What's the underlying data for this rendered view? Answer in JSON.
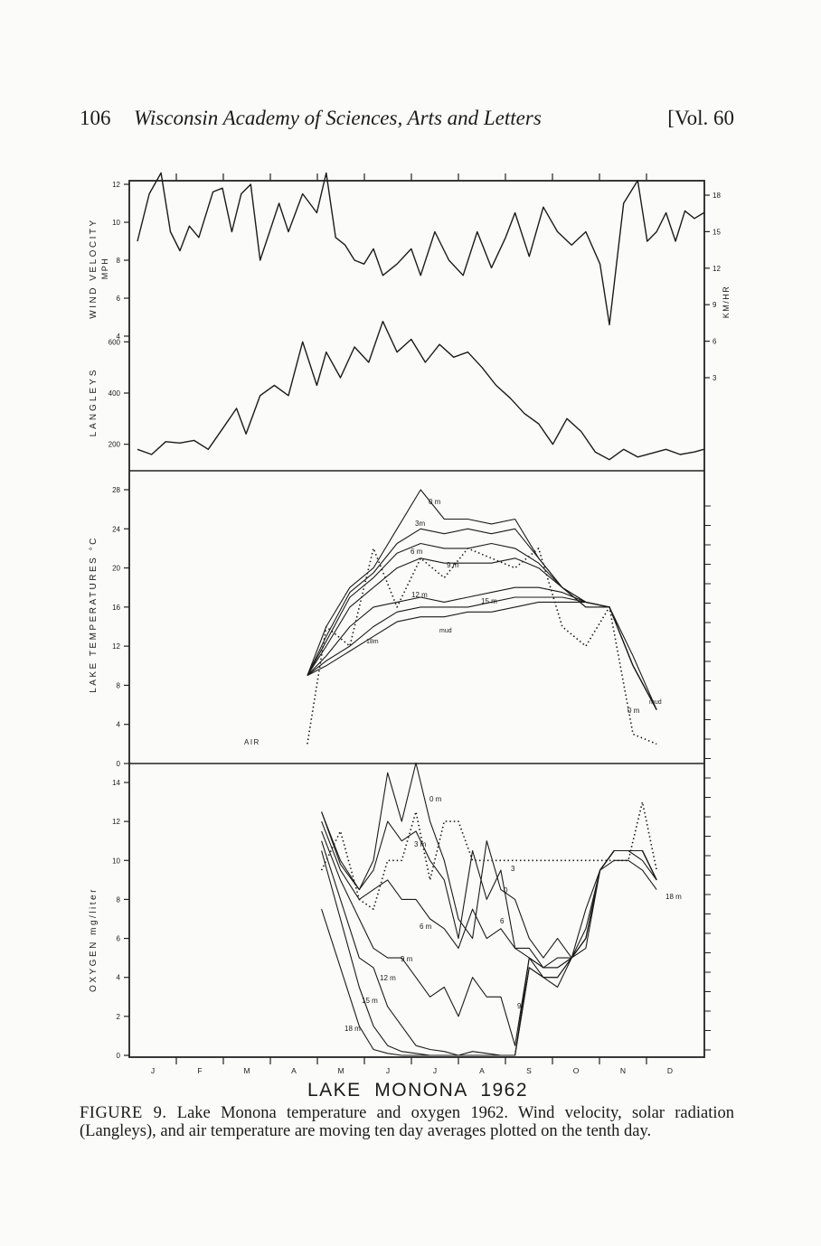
{
  "running_head": {
    "page_number": "106",
    "journal": "Wisconsin Academy of Sciences, Arts and Letters",
    "volume": "[Vol. 60"
  },
  "figure": {
    "title": "LAKE  MONONA  1962",
    "months": [
      "J",
      "F",
      "M",
      "A",
      "M",
      "J",
      "J",
      "A",
      "S",
      "O",
      "N",
      "D"
    ],
    "panels": {
      "wind": {
        "ylabel": "WIND VELOCITY",
        "yunit": "MPH",
        "yticks": [
          "4",
          "6",
          "8",
          "10",
          "12"
        ],
        "ylabel_right": "KM/HR",
        "yticks_right": [
          "3",
          "6",
          "9",
          "12",
          "15",
          "18"
        ]
      },
      "radiation": {
        "ylabel": "LANGLEYS",
        "yticks": [
          "200",
          "400",
          "600"
        ]
      },
      "temperature": {
        "ylabel": "LAKE  TEMPERATURES  °C",
        "yticks": [
          "0",
          "4",
          "8",
          "12",
          "16",
          "20",
          "24",
          "28"
        ],
        "labels": [
          "0 m",
          "3m",
          "6 m",
          "9 m",
          "12 m",
          "15 m",
          "mud",
          "18m",
          "AIR",
          "mud",
          "0 m"
        ]
      },
      "oxygen": {
        "ylabel": "OXYGEN   mg/liter",
        "yticks": [
          "0",
          "2",
          "4",
          "6",
          "8",
          "10",
          "12",
          "14"
        ],
        "labels": [
          "0 m",
          "3 m",
          "6 m",
          "9 m",
          "12 m",
          "15 m",
          "18 m",
          "3",
          "0",
          "6",
          "9",
          "18 m"
        ]
      }
    }
  },
  "chart_data": [
    {
      "type": "line",
      "title": "",
      "ylabel": "WIND VELOCITY MPH",
      "ylim": [
        4,
        12
      ],
      "x": [
        0,
        0.25,
        0.5,
        0.7,
        0.9,
        1.1,
        1.3,
        1.6,
        1.8,
        2.0,
        2.2,
        2.4,
        2.6,
        2.8,
        3.0,
        3.2,
        3.5,
        3.8,
        4.0,
        4.2,
        4.4,
        4.6,
        4.8,
        5.0,
        5.2,
        5.5,
        5.8,
        6.0,
        6.3,
        6.6,
        6.9,
        7.2,
        7.5,
        7.8,
        8.0,
        8.3,
        8.6,
        8.9,
        9.2,
        9.5,
        9.8,
        10.0,
        10.3,
        10.6,
        10.8,
        11.0,
        11.2,
        11.4,
        11.6,
        11.8,
        12.0
      ],
      "series": [
        {
          "values": [
            9.0,
            11.5,
            12.6,
            9.5,
            8.5,
            9.8,
            9.2,
            11.6,
            11.8,
            9.5,
            11.5,
            12.0,
            8.0,
            9.5,
            11.0,
            9.5,
            11.5,
            10.5,
            12.6,
            9.2,
            8.8,
            8.0,
            7.8,
            8.6,
            7.2,
            7.8,
            8.6,
            7.2,
            9.5,
            8.0,
            7.2,
            9.5,
            7.6,
            9.2,
            10.5,
            8.2,
            10.8,
            9.5,
            8.8,
            9.5,
            7.8,
            4.6,
            11.0,
            12.2,
            9.0,
            9.5,
            10.5,
            9.0,
            10.6,
            10.2,
            10.5
          ]
        }
      ]
    },
    {
      "type": "line",
      "title": "",
      "ylabel": "LANGLEYS",
      "ylim": [
        100,
        700
      ],
      "x": [
        0,
        0.3,
        0.6,
        0.9,
        1.2,
        1.5,
        1.8,
        2.1,
        2.3,
        2.6,
        2.9,
        3.2,
        3.5,
        3.8,
        4.0,
        4.3,
        4.6,
        4.9,
        5.2,
        5.5,
        5.8,
        6.1,
        6.4,
        6.7,
        7.0,
        7.3,
        7.6,
        7.9,
        8.2,
        8.5,
        8.8,
        9.1,
        9.4,
        9.7,
        10.0,
        10.3,
        10.6,
        10.9,
        11.2,
        11.5,
        11.8,
        12.0
      ],
      "series": [
        {
          "values": [
            180,
            160,
            210,
            205,
            215,
            180,
            260,
            340,
            240,
            390,
            430,
            390,
            600,
            430,
            560,
            460,
            580,
            520,
            680,
            560,
            610,
            520,
            590,
            540,
            560,
            500,
            430,
            380,
            320,
            280,
            200,
            300,
            250,
            170,
            140,
            180,
            150,
            165,
            180,
            160,
            170,
            180
          ]
        }
      ]
    },
    {
      "type": "line",
      "title": "",
      "ylabel": "LAKE TEMPERATURES °C",
      "ylim": [
        0,
        28
      ],
      "x": [
        3.6,
        4.0,
        4.5,
        5.0,
        5.5,
        6.0,
        6.5,
        7.0,
        7.5,
        8.0,
        8.5,
        9.0,
        9.5,
        10.0,
        10.5,
        11.0
      ],
      "series": [
        {
          "name": "0 m",
          "values": [
            9,
            14,
            18,
            20,
            24,
            28,
            25,
            25,
            24.5,
            25,
            21,
            18,
            16,
            16,
            11,
            5.5
          ]
        },
        {
          "name": "3m",
          "values": [
            9,
            13,
            17.5,
            19.5,
            22.5,
            24,
            23.5,
            24,
            23.5,
            24,
            21,
            18,
            16,
            16,
            10,
            5.5
          ]
        },
        {
          "name": "6 m",
          "values": [
            9,
            12.5,
            17,
            19,
            21.5,
            22.5,
            22,
            22,
            22.5,
            22,
            20.5,
            18,
            16.5,
            16,
            10,
            5.5
          ]
        },
        {
          "name": "9 m",
          "values": [
            9,
            12,
            16,
            18,
            20,
            21,
            20.5,
            20.5,
            20.5,
            21,
            20,
            18,
            16.5,
            16,
            10,
            5.5
          ]
        },
        {
          "name": "12 m",
          "values": [
            9,
            11,
            14,
            16,
            16.5,
            17,
            16.5,
            17,
            17.5,
            18,
            18,
            17.5,
            16.5,
            16,
            10,
            5.5
          ]
        },
        {
          "name": "15 m",
          "values": [
            9,
            10.5,
            12,
            14,
            15.5,
            16,
            16,
            16,
            16.5,
            17,
            17,
            17,
            16.5,
            16,
            10,
            5.5
          ]
        },
        {
          "name": "mud",
          "values": [
            9,
            10,
            11.5,
            13,
            14.5,
            15,
            15,
            15.5,
            15.5,
            16,
            16.5,
            16.5,
            16.5,
            16,
            10,
            5.5
          ]
        },
        {
          "name": "AIR",
          "values": [
            2,
            14,
            12,
            22,
            16,
            21,
            19,
            22,
            21,
            20,
            22,
            14,
            12,
            16,
            3,
            2
          ]
        }
      ]
    },
    {
      "type": "line",
      "title": "",
      "ylabel": "OXYGEN mg/liter",
      "ylim": [
        0,
        14
      ],
      "x": [
        3.9,
        4.3,
        4.7,
        5.0,
        5.3,
        5.6,
        5.9,
        6.2,
        6.5,
        6.8,
        7.1,
        7.4,
        7.7,
        8.0,
        8.3,
        8.6,
        8.9,
        9.2,
        9.5,
        9.8,
        10.1,
        10.4,
        10.7,
        11.0
      ],
      "series": [
        {
          "name": "0 m",
          "values": [
            12.5,
            10,
            8.5,
            10,
            14.5,
            12,
            15,
            12,
            10,
            7,
            6,
            11,
            8.5,
            8,
            6,
            5,
            6,
            5,
            5.5,
            9.5,
            10.5,
            10.5,
            10,
            9
          ]
        },
        {
          "name": "3 m",
          "values": [
            12.5,
            9.8,
            8.5,
            9.5,
            12,
            11,
            11.5,
            10,
            9,
            6,
            10.5,
            8,
            9.5,
            5.5,
            5,
            4.5,
            5,
            5,
            7.5,
            9.5,
            10.5,
            10.5,
            10.5,
            9
          ]
        },
        {
          "name": "6 m",
          "values": [
            12,
            9.5,
            8,
            8.5,
            9,
            8,
            8,
            7,
            6.5,
            5.5,
            7.5,
            6,
            6.5,
            5.5,
            5.5,
            4.5,
            4.5,
            5,
            6.5,
            9.5,
            10.5,
            10.5,
            10.5,
            9
          ]
        },
        {
          "name": "9 m",
          "values": [
            11.5,
            9,
            7,
            5.5,
            5,
            5,
            4,
            3,
            3.5,
            2,
            4,
            3,
            3,
            0.5,
            5,
            4.5,
            4.5,
            5,
            6,
            9.5,
            10.5,
            10.5,
            10.5,
            9
          ]
        },
        {
          "name": "12 m",
          "values": [
            11,
            8,
            5,
            4.5,
            2.5,
            1.5,
            0.5,
            0.3,
            0.2,
            0,
            0.2,
            0.1,
            0,
            0,
            5,
            4,
            4,
            5,
            6,
            9.5,
            10.5,
            10.5,
            10.5,
            9
          ]
        },
        {
          "name": "15 m",
          "values": [
            10.5,
            7,
            3.5,
            1.5,
            0.5,
            0.2,
            0.1,
            0,
            0,
            0,
            0,
            0,
            0,
            0,
            4.5,
            4,
            4,
            5,
            6,
            9.5,
            10.5,
            10.5,
            10.5,
            9
          ]
        },
        {
          "name": "18 m",
          "values": [
            7.5,
            4.5,
            1.5,
            0.3,
            0.1,
            0,
            0,
            0,
            0,
            0,
            0,
            0,
            0,
            0,
            4.5,
            4,
            3.5,
            5,
            6,
            9.5,
            10,
            10,
            9.5,
            8.5
          ]
        },
        {
          "name": "AIR",
          "values": [
            9.5,
            11.5,
            8,
            7.5,
            10,
            10,
            12.5,
            9,
            12,
            12,
            10,
            10,
            10,
            10,
            10,
            10,
            10,
            10,
            10,
            10,
            10,
            10,
            13,
            9.5
          ]
        }
      ]
    }
  ],
  "caption": {
    "label": "FIGURE 9.",
    "text": "Lake Monona temperature and oxygen 1962. Wind velocity, solar radiation (Langleys), and air temperature are moving ten day averages plotted on the tenth day."
  }
}
